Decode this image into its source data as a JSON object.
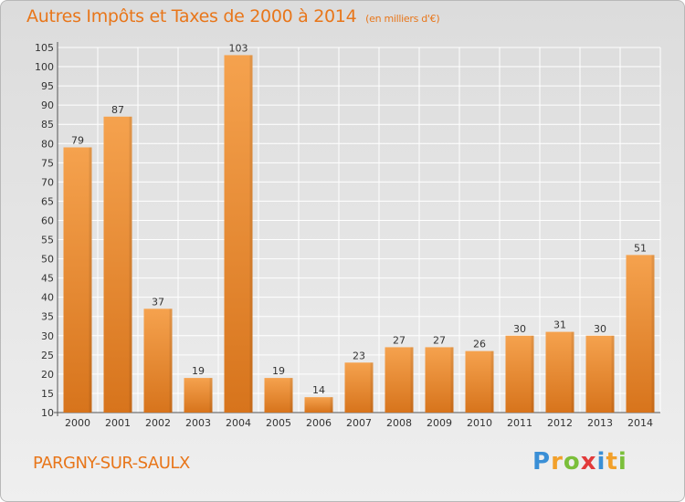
{
  "title": "Autres Impôts et Taxes de 2000 à 2014",
  "unit": "(en milliers d'€)",
  "town": "PARGNY-SUR-SAULX",
  "logo": {
    "p": "P",
    "r": "r",
    "o": "o",
    "x": "x",
    "i1": "i",
    "t": "t",
    "i2": "i"
  },
  "colors": {
    "bar_light": "#f5a24e",
    "bar_dark": "#d7741c",
    "title": "#e8761a"
  },
  "chart_data": {
    "type": "bar",
    "categories": [
      "2000",
      "2001",
      "2002",
      "2003",
      "2004",
      "2005",
      "2006",
      "2007",
      "2008",
      "2009",
      "2010",
      "2011",
      "2012",
      "2013",
      "2014"
    ],
    "values": [
      79,
      87,
      37,
      19,
      103,
      19,
      14,
      23,
      27,
      27,
      26,
      30,
      31,
      30,
      51
    ],
    "ylim": [
      10,
      105
    ],
    "yticks": [
      10,
      15,
      20,
      25,
      30,
      35,
      40,
      45,
      50,
      55,
      60,
      65,
      70,
      75,
      80,
      85,
      90,
      95,
      100,
      105
    ],
    "grid": true
  }
}
